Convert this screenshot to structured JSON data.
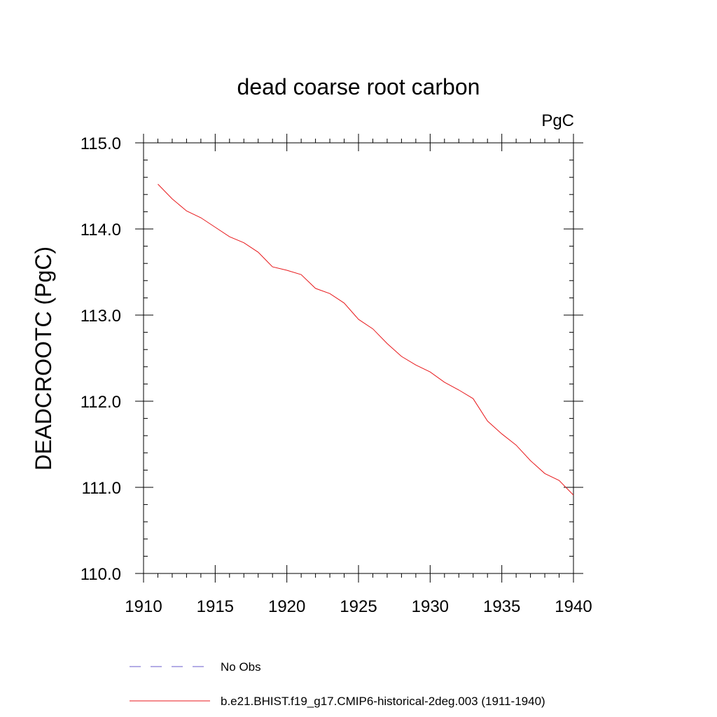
{
  "chart_data": {
    "type": "line",
    "title": "dead coarse root carbon",
    "units": "PgC",
    "ylabel": "DEADCROOTC  (PgC)",
    "xlabel": "",
    "xlim": [
      1910,
      1940
    ],
    "ylim": [
      110.0,
      115.0
    ],
    "x_ticks": [
      1910,
      1915,
      1920,
      1925,
      1930,
      1935,
      1940
    ],
    "x_tick_labels": [
      "1910",
      "1915",
      "1920",
      "1925",
      "1930",
      "1935",
      "1940"
    ],
    "y_ticks": [
      110.0,
      111.0,
      112.0,
      113.0,
      114.0,
      115.0
    ],
    "y_tick_labels": [
      "110.0",
      "111.0",
      "112.0",
      "113.0",
      "114.0",
      "115.0"
    ],
    "grid": false,
    "legend_placement": "bottom",
    "series": [
      {
        "name": "No Obs",
        "color": "#6a5acd",
        "dash": "dashed",
        "x": [],
        "y": []
      },
      {
        "name": "b.e21.BHIST.f19_g17.CMIP6-historical-2deg.003 (1911-1940)",
        "color": "#e8191c",
        "dash": "solid",
        "x": [
          1911,
          1912,
          1913,
          1914,
          1915,
          1916,
          1917,
          1918,
          1919,
          1920,
          1921,
          1922,
          1923,
          1924,
          1925,
          1926,
          1927,
          1928,
          1929,
          1930,
          1931,
          1932,
          1933,
          1934,
          1935,
          1936,
          1937,
          1938,
          1939,
          1940
        ],
        "y": [
          114.52,
          114.35,
          114.21,
          114.13,
          114.02,
          113.91,
          113.84,
          113.73,
          113.56,
          113.52,
          113.47,
          113.31,
          113.25,
          113.14,
          112.95,
          112.84,
          112.67,
          112.52,
          112.42,
          112.34,
          112.22,
          112.13,
          112.03,
          111.77,
          111.62,
          111.49,
          111.31,
          111.16,
          111.08,
          110.91
        ]
      }
    ]
  }
}
